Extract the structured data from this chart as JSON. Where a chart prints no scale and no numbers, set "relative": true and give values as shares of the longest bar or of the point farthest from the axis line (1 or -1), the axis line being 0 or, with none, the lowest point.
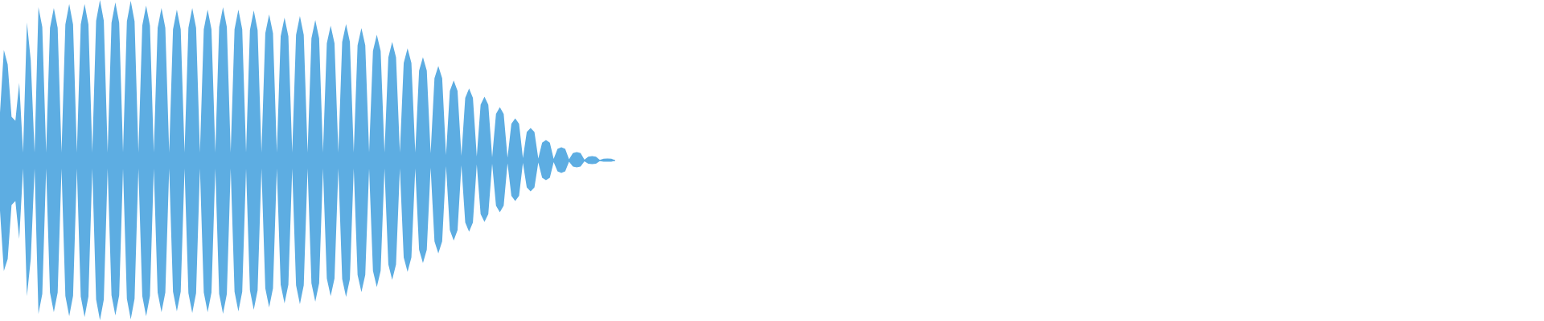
{
  "chart_data": {
    "type": "area",
    "relative": true,
    "categories": [
      null,
      null,
      null,
      null,
      null,
      null,
      null,
      null,
      null,
      null,
      null,
      null,
      null,
      null,
      null,
      null,
      null,
      null,
      null,
      null,
      null,
      null,
      null,
      null,
      null,
      null,
      null,
      null,
      null,
      null,
      null,
      null,
      null,
      null,
      null,
      null,
      null,
      null,
      null,
      null,
      null,
      null,
      null,
      null,
      null,
      null,
      null,
      null,
      null,
      null,
      null,
      null,
      null,
      null,
      null,
      null,
      null,
      null,
      null,
      null,
      null,
      null,
      null,
      null,
      null,
      null,
      null,
      null,
      null,
      null,
      null,
      null,
      null,
      null,
      null,
      null,
      null,
      null,
      null,
      null,
      null,
      null,
      null,
      null,
      null,
      null,
      null,
      null,
      null,
      null,
      null,
      null,
      null,
      null,
      null,
      null,
      null,
      null,
      null,
      null,
      null,
      null,
      null,
      null,
      null,
      null,
      null,
      null,
      null,
      null,
      null,
      null,
      null,
      null,
      null,
      null,
      null,
      null,
      null,
      null,
      null,
      null,
      null,
      null,
      null,
      null,
      null,
      null,
      null,
      null,
      null,
      null,
      null,
      null,
      null,
      null,
      null,
      null,
      null,
      null,
      null,
      null,
      null,
      null,
      null,
      null,
      null,
      null,
      null,
      null,
      null,
      null,
      null,
      null,
      null,
      null,
      null,
      null,
      null,
      null,
      null
    ],
    "series": [
      {
        "color": "#5dade2",
        "values": [
          0.298,
          0.689,
          0.599,
          0.273,
          0.248,
          0.484,
          0.05,
          0.86,
          0.624,
          0.05,
          0.955,
          0.831,
          0.05,
          0.826,
          0.95,
          0.826,
          0.05,
          0.848,
          0.975,
          0.848,
          0.05,
          0.848,
          0.975,
          0.848,
          0.05,
          0.87,
          1.0,
          0.87,
          0.05,
          0.857,
          0.985,
          0.857,
          0.05,
          0.866,
          0.995,
          0.866,
          0.05,
          0.84,
          0.965,
          0.84,
          0.05,
          0.826,
          0.95,
          0.826,
          0.05,
          0.818,
          0.94,
          0.818,
          0.05,
          0.826,
          0.95,
          0.826,
          0.05,
          0.818,
          0.94,
          0.818,
          0.05,
          0.831,
          0.955,
          0.831,
          0.05,
          0.818,
          0.94,
          0.818,
          0.05,
          0.813,
          0.935,
          0.813,
          0.05,
          0.792,
          0.91,
          0.792,
          0.05,
          0.774,
          0.89,
          0.774,
          0.05,
          0.783,
          0.9,
          0.783,
          0.05,
          0.761,
          0.875,
          0.761,
          0.05,
          0.73,
          0.84,
          0.73,
          0.05,
          0.739,
          0.85,
          0.739,
          0.05,
          0.717,
          0.825,
          0.717,
          0.05,
          0.682,
          0.784,
          0.682,
          0.05,
          0.643,
          0.739,
          0.643,
          0.05,
          0.608,
          0.699,
          0.608,
          0.05,
          0.56,
          0.644,
          0.56,
          0.045,
          0.512,
          0.589,
          0.512,
          0.035,
          0.434,
          0.499,
          0.434,
          0.03,
          0.39,
          0.449,
          0.39,
          0.025,
          0.347,
          0.398,
          0.347,
          0.02,
          0.29,
          0.333,
          0.29,
          0.018,
          0.229,
          0.263,
          0.229,
          0.015,
          0.177,
          0.203,
          0.177,
          0.013,
          0.111,
          0.128,
          0.111,
          0.01,
          0.072,
          0.083,
          0.072,
          0.008,
          0.046,
          0.053,
          0.046,
          0.005,
          0.024,
          0.028,
          0.024,
          0.004,
          0.011,
          0.013,
          0.011,
          0.002
        ]
      },
      {
        "color": "#5dade2",
        "values": [
          -0.313,
          -0.689,
          -0.614,
          -0.278,
          -0.253,
          -0.489,
          -0.05,
          -0.845,
          -0.614,
          -0.05,
          -0.955,
          -0.831,
          -0.05,
          -0.822,
          -0.945,
          -0.822,
          -0.05,
          -0.844,
          -0.97,
          -0.844,
          -0.05,
          -0.848,
          -0.975,
          -0.848,
          -0.05,
          -0.866,
          -0.995,
          -0.866,
          -0.05,
          -0.84,
          -0.965,
          -0.84,
          -0.05,
          -0.861,
          -0.99,
          -0.861,
          -0.05,
          -0.844,
          -0.97,
          -0.844,
          -0.05,
          -0.822,
          -0.945,
          -0.822,
          -0.05,
          -0.818,
          -0.94,
          -0.818,
          -0.05,
          -0.826,
          -0.95,
          -0.826,
          -0.05,
          -0.822,
          -0.945,
          -0.822,
          -0.05,
          -0.831,
          -0.955,
          -0.831,
          -0.05,
          -0.818,
          -0.94,
          -0.818,
          -0.05,
          -0.809,
          -0.93,
          -0.809,
          -0.05,
          -0.796,
          -0.915,
          -0.796,
          -0.05,
          -0.774,
          -0.89,
          -0.774,
          -0.05,
          -0.778,
          -0.895,
          -0.778,
          -0.05,
          -0.765,
          -0.88,
          -0.765,
          -0.05,
          -0.735,
          -0.845,
          -0.735,
          -0.05,
          -0.739,
          -0.85,
          -0.739,
          -0.05,
          -0.713,
          -0.82,
          -0.713,
          -0.05,
          -0.687,
          -0.789,
          -0.687,
          -0.05,
          -0.648,
          -0.744,
          -0.648,
          -0.05,
          -0.604,
          -0.694,
          -0.604,
          -0.05,
          -0.556,
          -0.639,
          -0.556,
          -0.045,
          -0.504,
          -0.579,
          -0.504,
          -0.035,
          -0.434,
          -0.499,
          -0.434,
          -0.03,
          -0.386,
          -0.444,
          -0.386,
          -0.025,
          -0.334,
          -0.383,
          -0.334,
          -0.02,
          -0.281,
          -0.323,
          -0.281,
          -0.018,
          -0.22,
          -0.253,
          -0.22,
          -0.015,
          -0.168,
          -0.193,
          -0.168,
          -0.013,
          -0.107,
          -0.123,
          -0.107,
          -0.01,
          -0.068,
          -0.078,
          -0.068,
          -0.008,
          -0.037,
          -0.043,
          -0.037,
          -0.005,
          -0.02,
          -0.023,
          -0.02,
          -0.004,
          -0.007,
          -0.008,
          -0.007,
          -0.002
        ]
      }
    ]
  }
}
